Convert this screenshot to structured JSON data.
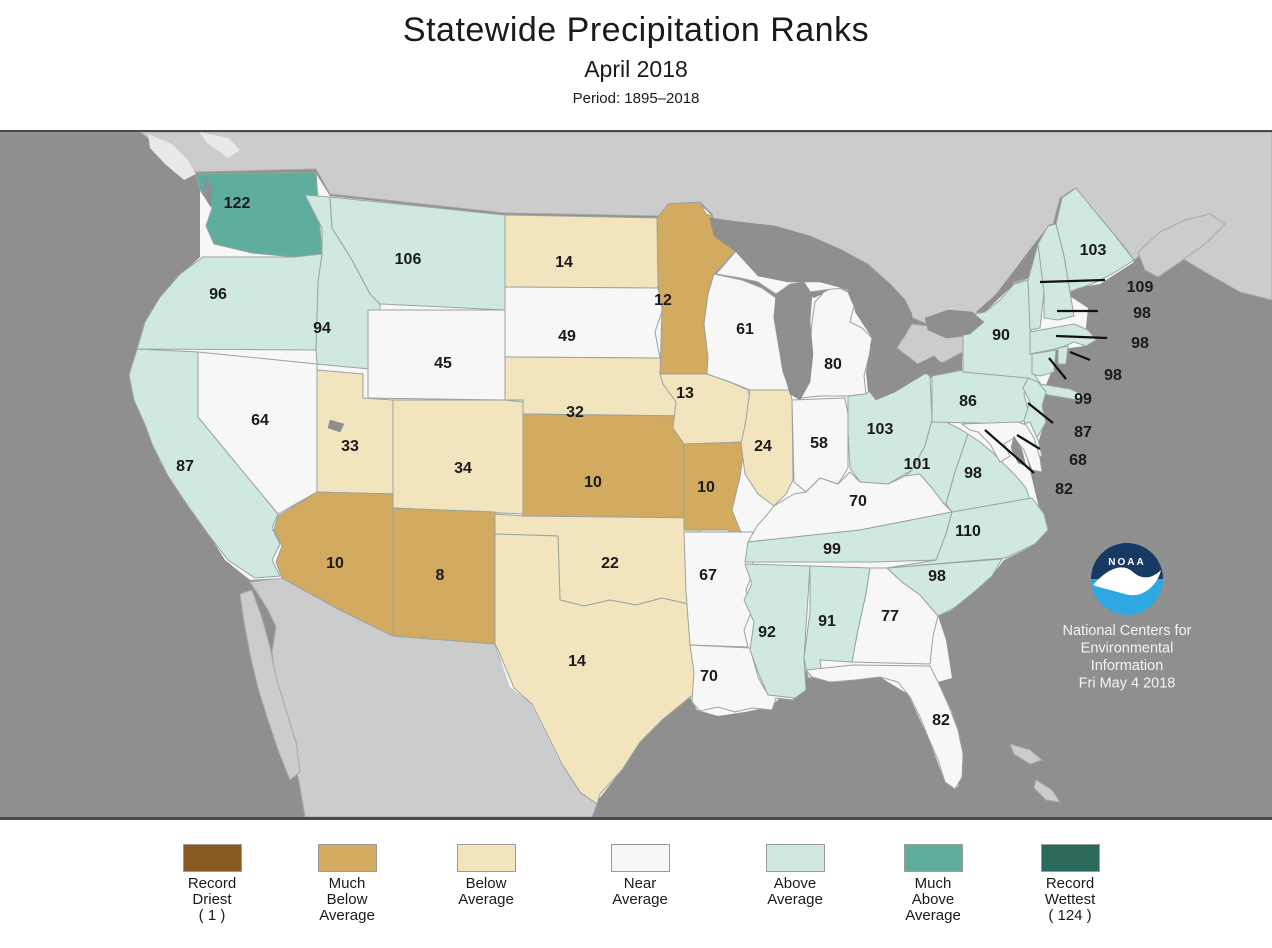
{
  "title": {
    "main": "Statewide Precipitation Ranks",
    "subtitle": "April 2018",
    "period": "Period: 1895–2018"
  },
  "attribution": {
    "logo_text": "NOAA",
    "lines": [
      "National Centers for",
      "Environmental",
      "Information",
      "Fri May 4 2018"
    ]
  },
  "legend": {
    "items": [
      {
        "id": "record_driest",
        "color": "#8a5a25",
        "lines": [
          "Record",
          "Driest",
          "( 1 )"
        ]
      },
      {
        "id": "much_below",
        "color": "#d2aa60",
        "lines": [
          "Much",
          "Below",
          "Average"
        ]
      },
      {
        "id": "below",
        "color": "#f2e5bd",
        "lines": [
          "Below",
          "Average"
        ]
      },
      {
        "id": "near",
        "color": "#f7f7f7",
        "lines": [
          "Near",
          "Average"
        ]
      },
      {
        "id": "above",
        "color": "#cfe8e0",
        "lines": [
          "Above",
          "Average"
        ]
      },
      {
        "id": "much_above",
        "color": "#5fad9d",
        "lines": [
          "Much",
          "Above",
          "Average"
        ]
      },
      {
        "id": "record_wettest",
        "color": "#2c6a5c",
        "lines": [
          "Record",
          "Wettest",
          "( 124 )"
        ]
      }
    ]
  },
  "colors": {
    "ocean": "#8f8f8f",
    "foreign_land": "#cccccc",
    "us_base": "#f7f7f7",
    "state_border": "#9aa39f",
    "map_frame": "#4a4a4a",
    "label_text": "#1a1a1a",
    "leader_line": "#111111",
    "noaa_navy": "#173a64",
    "noaa_blue": "#2ea8e0",
    "ice_patch": "#e9e9e9"
  },
  "states": [
    {
      "id": "WA",
      "name": "Washington",
      "rank": 122,
      "category": "much_above"
    },
    {
      "id": "OR",
      "name": "Oregon",
      "rank": 96,
      "category": "above"
    },
    {
      "id": "CA",
      "name": "California",
      "rank": 87,
      "category": "above"
    },
    {
      "id": "ID",
      "name": "Idaho",
      "rank": 94,
      "category": "above"
    },
    {
      "id": "NV",
      "name": "Nevada",
      "rank": 64,
      "category": "near"
    },
    {
      "id": "MT",
      "name": "Montana",
      "rank": 106,
      "category": "above"
    },
    {
      "id": "WY",
      "name": "Wyoming",
      "rank": 45,
      "category": "near"
    },
    {
      "id": "UT",
      "name": "Utah",
      "rank": 33,
      "category": "below"
    },
    {
      "id": "CO",
      "name": "Colorado",
      "rank": 34,
      "category": "below"
    },
    {
      "id": "AZ",
      "name": "Arizona",
      "rank": 10,
      "category": "much_below"
    },
    {
      "id": "NM",
      "name": "New Mexico",
      "rank": 8,
      "category": "much_below"
    },
    {
      "id": "ND",
      "name": "North Dakota",
      "rank": 14,
      "category": "below"
    },
    {
      "id": "SD",
      "name": "South Dakota",
      "rank": 49,
      "category": "near"
    },
    {
      "id": "NE",
      "name": "Nebraska",
      "rank": 32,
      "category": "below"
    },
    {
      "id": "KS",
      "name": "Kansas",
      "rank": 10,
      "category": "much_below"
    },
    {
      "id": "OK",
      "name": "Oklahoma",
      "rank": 22,
      "category": "below"
    },
    {
      "id": "TX",
      "name": "Texas",
      "rank": 14,
      "category": "below"
    },
    {
      "id": "MN",
      "name": "Minnesota",
      "rank": 12,
      "category": "much_below"
    },
    {
      "id": "IA",
      "name": "Iowa",
      "rank": 13,
      "category": "below"
    },
    {
      "id": "MO",
      "name": "Missouri",
      "rank": 10,
      "category": "much_below"
    },
    {
      "id": "AR",
      "name": "Arkansas",
      "rank": 67,
      "category": "near"
    },
    {
      "id": "LA",
      "name": "Louisiana",
      "rank": 70,
      "category": "near"
    },
    {
      "id": "WI",
      "name": "Wisconsin",
      "rank": 61,
      "category": "near"
    },
    {
      "id": "IL",
      "name": "Illinois",
      "rank": 24,
      "category": "below"
    },
    {
      "id": "MI",
      "name": "Michigan",
      "rank": 80,
      "category": "near"
    },
    {
      "id": "IN",
      "name": "Indiana",
      "rank": 58,
      "category": "near"
    },
    {
      "id": "OH",
      "name": "Ohio",
      "rank": 103,
      "category": "above"
    },
    {
      "id": "KY",
      "name": "Kentucky",
      "rank": 70,
      "category": "near"
    },
    {
      "id": "TN",
      "name": "Tennessee",
      "rank": 99,
      "category": "above"
    },
    {
      "id": "MS",
      "name": "Mississippi",
      "rank": 92,
      "category": "above"
    },
    {
      "id": "AL",
      "name": "Alabama",
      "rank": 91,
      "category": "above"
    },
    {
      "id": "GA",
      "name": "Georgia",
      "rank": 77,
      "category": "near"
    },
    {
      "id": "FL",
      "name": "Florida",
      "rank": 82,
      "category": "near"
    },
    {
      "id": "WV",
      "name": "West Virginia",
      "rank": 101,
      "category": "above"
    },
    {
      "id": "VA",
      "name": "Virginia",
      "rank": 98,
      "category": "above"
    },
    {
      "id": "NC",
      "name": "North Carolina",
      "rank": 110,
      "category": "above"
    },
    {
      "id": "SC",
      "name": "South Carolina",
      "rank": 98,
      "category": "above"
    },
    {
      "id": "ME",
      "name": "Maine",
      "rank": 103,
      "category": "above"
    },
    {
      "id": "NY",
      "name": "New York",
      "rank": 90,
      "category": "above"
    },
    {
      "id": "PA",
      "name": "Pennsylvania",
      "rank": 86,
      "category": "above"
    },
    {
      "id": "VT",
      "name": "Vermont",
      "rank": 109,
      "category": "above"
    },
    {
      "id": "NH",
      "name": "New Hampshire",
      "rank": 98,
      "category": "above"
    },
    {
      "id": "MA",
      "name": "Massachusetts",
      "rank": 98,
      "category": "above"
    },
    {
      "id": "RI",
      "name": "Rhode Island",
      "rank": 98,
      "category": "above"
    },
    {
      "id": "CT",
      "name": "Connecticut",
      "rank": 99,
      "category": "above"
    },
    {
      "id": "NJ",
      "name": "New Jersey",
      "rank": 87,
      "category": "above"
    },
    {
      "id": "DE",
      "name": "Delaware",
      "rank": 68,
      "category": "near"
    },
    {
      "id": "MD",
      "name": "Maryland",
      "rank": 82,
      "category": "near"
    }
  ]
}
